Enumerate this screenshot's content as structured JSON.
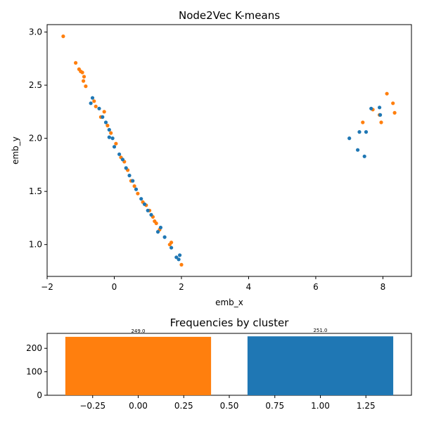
{
  "colors": {
    "cluster0": "#ff7f0e",
    "cluster1": "#1f77b4"
  },
  "chart_data": [
    {
      "type": "scatter",
      "title": "Node2Vec K-means",
      "xlabel": "emb_x",
      "ylabel": "emb_y",
      "xlim": [
        -2.0,
        8.85
      ],
      "ylim": [
        0.7,
        3.07
      ],
      "xticks": [
        -2,
        0,
        2,
        4,
        6,
        8
      ],
      "yticks": [
        1.0,
        1.5,
        2.0,
        2.5,
        3.0
      ],
      "xtick_labels": [
        "−2",
        "0",
        "2",
        "4",
        "6",
        "8"
      ],
      "ytick_labels": [
        "1.0",
        "1.5",
        "2.0",
        "2.5",
        "3.0"
      ],
      "grid": false,
      "legend": "none",
      "series": [
        {
          "cluster": 0,
          "color": "#ff7f0e",
          "points": [
            [
              -1.52,
              2.96
            ],
            [
              -1.15,
              2.71
            ],
            [
              -1.05,
              2.65
            ],
            [
              -1.0,
              2.63
            ],
            [
              -0.95,
              2.62
            ],
            [
              -0.9,
              2.58
            ],
            [
              -0.85,
              2.49
            ],
            [
              -0.92,
              2.54
            ],
            [
              7.4,
              2.15
            ],
            [
              7.7,
              2.27
            ],
            [
              7.95,
              2.15
            ],
            [
              8.12,
              2.42
            ],
            [
              8.3,
              2.33
            ],
            [
              8.35,
              2.24
            ],
            [
              7.9,
              2.22
            ],
            [
              1.65,
              1.0
            ],
            [
              1.7,
              1.02
            ],
            [
              2.0,
              0.81
            ],
            [
              1.35,
              1.14
            ],
            [
              1.2,
              1.22
            ],
            [
              1.15,
              1.26
            ],
            [
              1.05,
              1.32
            ],
            [
              0.95,
              1.37
            ],
            [
              0.85,
              1.4
            ],
            [
              0.6,
              1.55
            ],
            [
              0.4,
              1.7
            ],
            [
              0.2,
              1.82
            ],
            [
              0.05,
              1.95
            ],
            [
              -0.2,
              2.12
            ],
            [
              -0.4,
              2.2
            ],
            [
              -0.6,
              2.35
            ],
            [
              -0.55,
              2.3
            ],
            [
              -0.3,
              2.25
            ],
            [
              -0.1,
              2.05
            ],
            [
              0.3,
              1.78
            ],
            [
              0.5,
              1.6
            ],
            [
              0.7,
              1.48
            ],
            [
              1.25,
              1.2
            ]
          ]
        },
        {
          "cluster": 1,
          "color": "#1f77b4",
          "points": [
            [
              7.0,
              2.0
            ],
            [
              7.25,
              1.89
            ],
            [
              7.3,
              2.06
            ],
            [
              7.45,
              1.83
            ],
            [
              7.5,
              2.06
            ],
            [
              7.65,
              2.28
            ],
            [
              7.9,
              2.29
            ],
            [
              7.92,
              2.22
            ],
            [
              1.38,
              1.16
            ],
            [
              1.5,
              1.07
            ],
            [
              1.7,
              0.97
            ],
            [
              1.85,
              0.88
            ],
            [
              1.92,
              0.86
            ],
            [
              1.95,
              0.9
            ],
            [
              1.3,
              1.12
            ],
            [
              1.1,
              1.28
            ],
            [
              0.8,
              1.43
            ],
            [
              0.55,
              1.6
            ],
            [
              0.35,
              1.72
            ],
            [
              0.15,
              1.85
            ],
            [
              -0.05,
              2.0
            ],
            [
              -0.25,
              2.15
            ],
            [
              -0.45,
              2.28
            ],
            [
              -0.7,
              2.33
            ],
            [
              -0.65,
              2.38
            ],
            [
              1.0,
              1.32
            ],
            [
              0.9,
              1.38
            ],
            [
              0.65,
              1.52
            ],
            [
              0.45,
              1.65
            ],
            [
              0.25,
              1.8
            ],
            [
              0.0,
              1.92
            ],
            [
              -0.15,
              2.08
            ],
            [
              -0.35,
              2.2
            ],
            [
              -0.15,
              2.01
            ]
          ]
        }
      ]
    },
    {
      "type": "bar",
      "title": "Frequencies by cluster",
      "categories": [
        0,
        1
      ],
      "values": [
        249.0,
        251.0
      ],
      "value_labels": [
        "249.0",
        "251.0"
      ],
      "colors": [
        "#ff7f0e",
        "#1f77b4"
      ],
      "bar_width": 0.8,
      "xlim": [
        -0.5,
        1.5
      ],
      "ylim": [
        0,
        263.6
      ],
      "xticks": [
        -0.25,
        0.0,
        0.25,
        0.5,
        0.75,
        1.0,
        1.25
      ],
      "xtick_labels": [
        "−0.25",
        "0.00",
        "0.25",
        "0.50",
        "0.75",
        "1.00",
        "1.25"
      ],
      "yticks": [
        0,
        100,
        200
      ],
      "ytick_labels": [
        "0",
        "100",
        "200"
      ],
      "grid": false,
      "legend": "none"
    }
  ]
}
